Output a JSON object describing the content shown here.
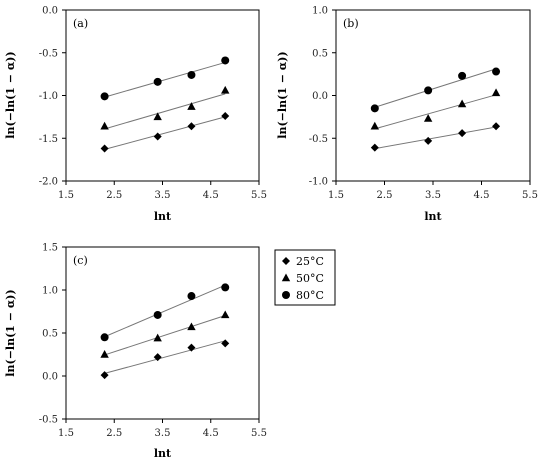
{
  "chart_data": [
    {
      "type": "scatter",
      "panel_label": "(a)",
      "xlabel": "lnt",
      "ylabel": "ln(−ln(1 − α))",
      "xlim": [
        1.5,
        5.5
      ],
      "ylim": [
        -2.0,
        0.0
      ],
      "xticks": [
        "1.5",
        "2.5",
        "3.5",
        "4.5",
        "5.5"
      ],
      "yticks": [
        "0.0",
        "-0.5",
        "-1.0",
        "-1.5",
        "-2.0"
      ],
      "trendlines": true,
      "series": [
        {
          "name": "25°C",
          "marker": "diamond",
          "x": [
            2.3,
            3.4,
            4.1,
            4.8
          ],
          "y": [
            -1.62,
            -1.48,
            -1.36,
            -1.24
          ]
        },
        {
          "name": "50°C",
          "marker": "triangle",
          "x": [
            2.3,
            3.4,
            4.1,
            4.8
          ],
          "y": [
            -1.36,
            -1.25,
            -1.13,
            -0.94
          ]
        },
        {
          "name": "80°C",
          "marker": "circle",
          "x": [
            2.3,
            3.4,
            4.1,
            4.8
          ],
          "y": [
            -1.01,
            -0.84,
            -0.76,
            -0.59
          ]
        }
      ]
    },
    {
      "type": "scatter",
      "panel_label": "(b)",
      "xlabel": "lnt",
      "ylabel": "ln(−ln(1 − α))",
      "xlim": [
        1.5,
        5.5
      ],
      "ylim": [
        -1.0,
        1.0
      ],
      "xticks": [
        "1.5",
        "2.5",
        "3.5",
        "4.5",
        "5.5"
      ],
      "yticks": [
        "1.0",
        "0.5",
        "0.0",
        "-0.5",
        "-1.0"
      ],
      "trendlines": true,
      "series": [
        {
          "name": "25°C",
          "marker": "diamond",
          "x": [
            2.3,
            3.4,
            4.1,
            4.8
          ],
          "y": [
            -0.61,
            -0.53,
            -0.44,
            -0.36
          ]
        },
        {
          "name": "50°C",
          "marker": "triangle",
          "x": [
            2.3,
            3.4,
            4.1,
            4.8
          ],
          "y": [
            -0.36,
            -0.27,
            -0.1,
            0.03
          ]
        },
        {
          "name": "80°C",
          "marker": "circle",
          "x": [
            2.3,
            3.4,
            4.1,
            4.8
          ],
          "y": [
            -0.15,
            0.06,
            0.23,
            0.28
          ]
        }
      ]
    },
    {
      "type": "scatter",
      "panel_label": "(c)",
      "xlabel": "lnt",
      "ylabel": "ln(−ln(1 − α))",
      "xlim": [
        1.5,
        5.5
      ],
      "ylim": [
        -0.5,
        1.5
      ],
      "xticks": [
        "1.5",
        "2.5",
        "3.5",
        "4.5",
        "5.5"
      ],
      "yticks": [
        "1.5",
        "1.0",
        "0.5",
        "0.0",
        "-0.5"
      ],
      "trendlines": true,
      "series": [
        {
          "name": "25°C",
          "marker": "diamond",
          "x": [
            2.3,
            3.4,
            4.1,
            4.8
          ],
          "y": [
            0.01,
            0.22,
            0.33,
            0.38
          ]
        },
        {
          "name": "50°C",
          "marker": "triangle",
          "x": [
            2.3,
            3.4,
            4.1,
            4.8
          ],
          "y": [
            0.25,
            0.44,
            0.57,
            0.71
          ]
        },
        {
          "name": "80°C",
          "marker": "circle",
          "x": [
            2.3,
            3.4,
            4.1,
            4.8
          ],
          "y": [
            0.45,
            0.71,
            0.93,
            1.03
          ]
        }
      ]
    }
  ],
  "legend": {
    "placement": "right of panel (c)",
    "entries": [
      {
        "label": "25°C",
        "marker": "diamond"
      },
      {
        "label": "50°C",
        "marker": "triangle"
      },
      {
        "label": "80°C",
        "marker": "circle"
      }
    ]
  }
}
